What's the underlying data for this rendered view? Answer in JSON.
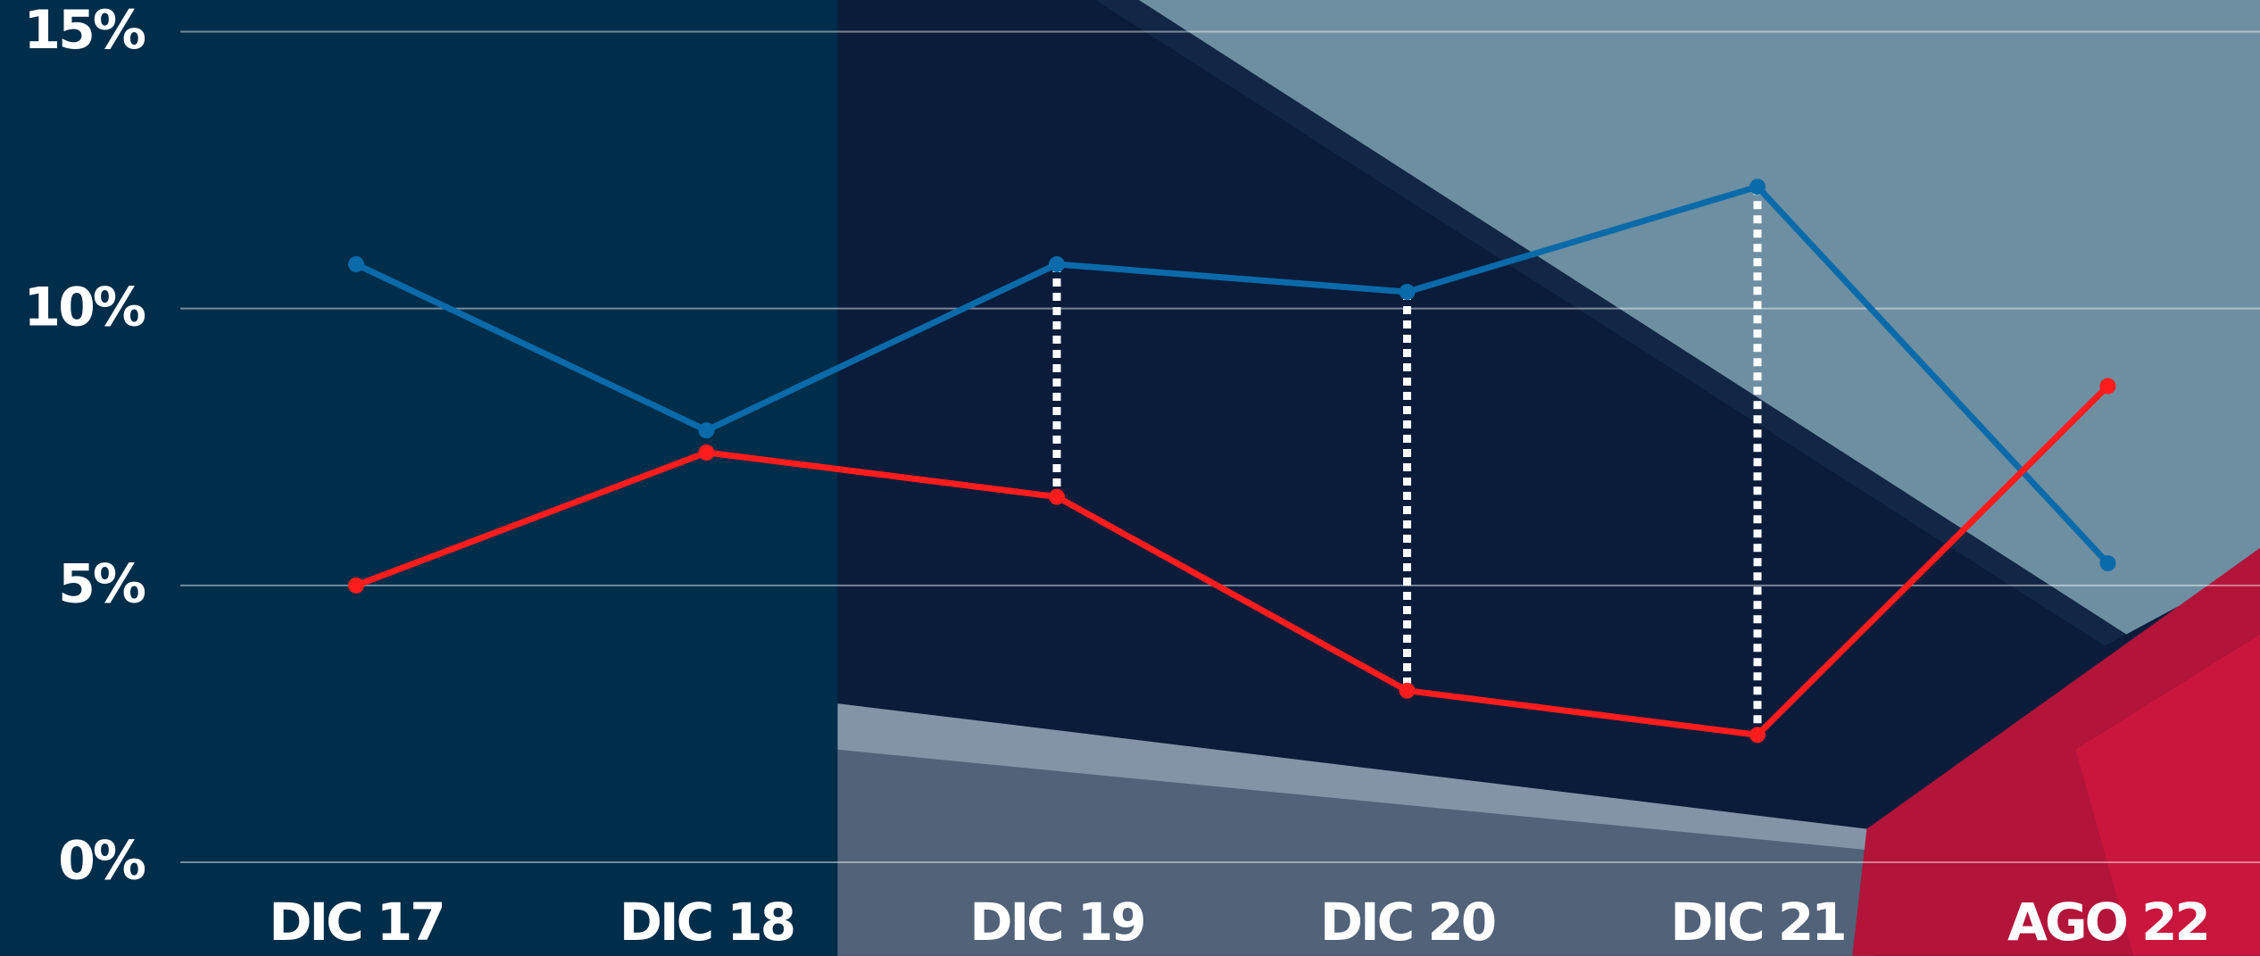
{
  "chart_data": {
    "type": "line",
    "categories": [
      "DIC 17",
      "DIC 18",
      "DIC 19",
      "DIC 20",
      "DIC 21",
      "AGO 22"
    ],
    "series": [
      {
        "color": "#0b6aa9",
        "values": [
          10.8,
          7.8,
          10.8,
          10.3,
          12.2,
          5.4
        ]
      },
      {
        "color": "#ff1c1c",
        "values": [
          5.0,
          7.4,
          6.6,
          3.1,
          2.3,
          8.6
        ]
      }
    ],
    "ylim": [
      0,
      15
    ],
    "yticks": [
      {
        "value": 0,
        "label": "0%"
      },
      {
        "value": 5,
        "label": "5%"
      },
      {
        "value": 10,
        "label": "10%"
      },
      {
        "value": 15,
        "label": "15%"
      }
    ],
    "grid": true,
    "gap_markers": [
      2,
      3,
      4
    ]
  }
}
